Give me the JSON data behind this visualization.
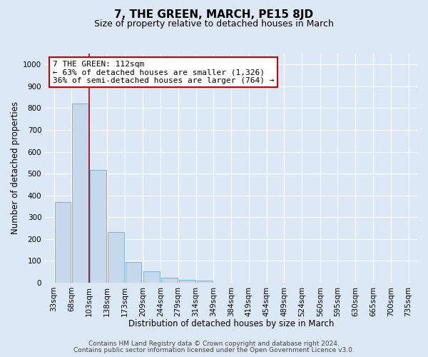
{
  "title": "7, THE GREEN, MARCH, PE15 8JD",
  "subtitle": "Size of property relative to detached houses in March",
  "xlabel": "Distribution of detached houses by size in March",
  "ylabel": "Number of detached properties",
  "bin_labels": [
    "33sqm",
    "68sqm",
    "103sqm",
    "138sqm",
    "173sqm",
    "209sqm",
    "244sqm",
    "279sqm",
    "314sqm",
    "349sqm",
    "384sqm",
    "419sqm",
    "454sqm",
    "489sqm",
    "524sqm",
    "560sqm",
    "595sqm",
    "630sqm",
    "665sqm",
    "700sqm",
    "735sqm"
  ],
  "bar_heights": [
    370,
    820,
    515,
    233,
    93,
    52,
    22,
    13,
    8,
    0,
    0,
    0,
    0,
    0,
    0,
    0,
    0,
    0,
    0,
    0
  ],
  "bar_color": "#c5d8ec",
  "bar_edge_color": "#6aaed6",
  "bin_edges": [
    33,
    68,
    103,
    138,
    173,
    209,
    244,
    279,
    314,
    349,
    384,
    419,
    454,
    489,
    524,
    560,
    595,
    630,
    665,
    700,
    735
  ],
  "ylim": [
    0,
    1050
  ],
  "yticks": [
    0,
    100,
    200,
    300,
    400,
    500,
    600,
    700,
    800,
    900,
    1000
  ],
  "annotation_title": "7 THE GREEN: 112sqm",
  "annotation_line1": "← 63% of detached houses are smaller (1,326)",
  "annotation_line2": "36% of semi-detached houses are larger (764) →",
  "annotation_box_color": "#ffffff",
  "annotation_box_edge": "#cc0000",
  "vline_color": "#aa0000",
  "footer1": "Contains HM Land Registry data © Crown copyright and database right 2024.",
  "footer2": "Contains public sector information licensed under the Open Government Licence v3.0.",
  "background_color": "#dce8f5",
  "plot_bg_color": "#dce8f5",
  "grid_color": "#ffffff",
  "title_fontsize": 11,
  "subtitle_fontsize": 9,
  "axis_label_fontsize": 8.5,
  "tick_fontsize": 7.5,
  "footer_fontsize": 6.5,
  "annotation_fontsize": 8
}
